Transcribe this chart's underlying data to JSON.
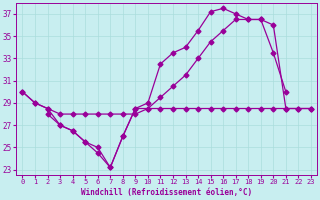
{
  "xlabel": "Windchill (Refroidissement éolien,°C)",
  "color": "#990099",
  "bg_color": "#c8eef0",
  "grid_color": "#aadddd",
  "ylim": [
    22.5,
    38.0
  ],
  "yticks": [
    23,
    25,
    27,
    29,
    31,
    33,
    35,
    37
  ],
  "xlim": [
    -0.5,
    23.5
  ],
  "xticks": [
    0,
    1,
    2,
    3,
    4,
    5,
    6,
    7,
    8,
    9,
    10,
    11,
    12,
    13,
    14,
    15,
    16,
    17,
    18,
    19,
    20,
    21,
    22,
    23
  ],
  "line1_x": [
    0,
    1,
    2,
    3,
    4,
    5,
    6,
    7,
    8,
    9,
    10,
    11,
    12,
    13,
    14,
    15,
    16,
    17,
    18,
    19,
    20,
    21
  ],
  "line1_y": [
    30.0,
    29.0,
    28.5,
    27.0,
    26.5,
    25.5,
    24.5,
    23.2,
    26.0,
    28.5,
    29.0,
    32.5,
    33.5,
    34.0,
    35.5,
    37.2,
    37.5,
    37.0,
    36.5,
    36.5,
    33.5,
    30.0
  ],
  "line2_x": [
    0,
    1,
    2,
    3,
    4,
    5,
    6,
    7,
    8,
    9,
    10,
    11,
    12,
    13,
    14,
    15,
    16,
    17,
    18,
    19,
    20,
    21,
    22,
    23
  ],
  "line2_y": [
    30.0,
    29.0,
    28.5,
    28.0,
    28.0,
    28.0,
    28.0,
    28.0,
    28.0,
    28.0,
    28.5,
    29.5,
    30.5,
    31.5,
    33.0,
    34.5,
    35.5,
    36.5,
    36.5,
    36.5,
    36.0,
    28.5,
    28.5,
    28.5
  ],
  "line3_x": [
    2,
    3,
    4,
    5,
    6,
    7,
    8,
    9,
    10,
    11,
    12,
    13,
    14,
    15,
    16,
    17,
    18,
    19,
    20,
    21,
    22,
    23
  ],
  "line3_y": [
    28.0,
    27.0,
    26.5,
    25.5,
    25.0,
    23.2,
    26.0,
    28.5,
    28.5,
    28.5,
    28.5,
    28.5,
    28.5,
    28.5,
    28.5,
    28.5,
    28.5,
    28.5,
    28.5,
    28.5,
    28.5,
    28.5
  ]
}
